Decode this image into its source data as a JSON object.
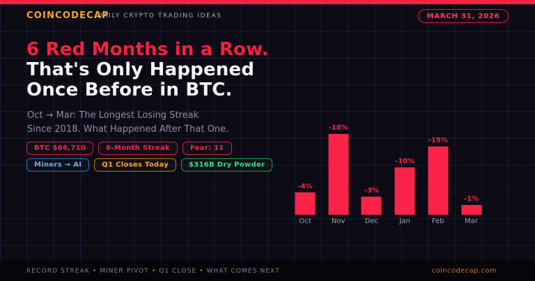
{
  "header": {
    "brand": "COINCODECAP",
    "tagline": "DAILY CRYPTO TRADING IDEAS",
    "date_badge": "MARCH 31, 2026"
  },
  "headline": {
    "line1": "6 Red Months in a Row.",
    "line2": "That's Only Happened",
    "line3": "Once Before in BTC."
  },
  "subtitle": {
    "line1": "Oct → Mar: The Longest Losing Streak",
    "line2": "Since 2018. What Happened After That One."
  },
  "stat_badges": {
    "row1": [
      {
        "label": "BTC $66,710",
        "text_color": "#fb2348",
        "border_color": "#d41d3f"
      },
      {
        "label": "6-Month Streak",
        "text_color": "#fb2348",
        "border_color": "#d41d3f"
      },
      {
        "label": "Fear: 11",
        "text_color": "#fb2348",
        "border_color": "#d41d3f"
      }
    ],
    "row2": [
      {
        "label": "Miners → AI",
        "text_color": "#5fb0ea",
        "border_color": "#2e78b5"
      },
      {
        "label": "Q1 Closes Today",
        "text_color": "#f5a623",
        "border_color": "#b97c16"
      },
      {
        "label": "$316B Dry Powder",
        "text_color": "#2ee37c",
        "border_color": "#17a24d"
      }
    ]
  },
  "chart_data": {
    "type": "bar",
    "title": "",
    "categories": [
      "Oct",
      "Nov",
      "Dec",
      "Jan",
      "Feb",
      "Mar"
    ],
    "values": [
      -4,
      -18,
      -3,
      -10,
      -15,
      -1
    ],
    "data_labels": [
      "-4%",
      "-18%",
      "-3%",
      "-10%",
      "-15%",
      "-1%"
    ],
    "xlabel": "",
    "ylabel": "",
    "ylim": [
      -18,
      0
    ],
    "grid": true,
    "legend": false,
    "bar_color": "#fb2348",
    "label_color": "#fb2348"
  },
  "footer": {
    "topics": [
      "RECORD STREAK",
      "MINER PIVOT",
      "Q1 CLOSE",
      "WHAT COMES NEXT"
    ],
    "separator": "•",
    "website": "coincodecap.com"
  },
  "colors": {
    "background": "#0c0a15",
    "top_bar": "#fc2044",
    "accent_red": "#fb2348",
    "brand_orange": "#f5a528",
    "headline_white": "#f4f4f7",
    "muted_text": "#8b90a4",
    "grid_line": "#2a2239"
  }
}
